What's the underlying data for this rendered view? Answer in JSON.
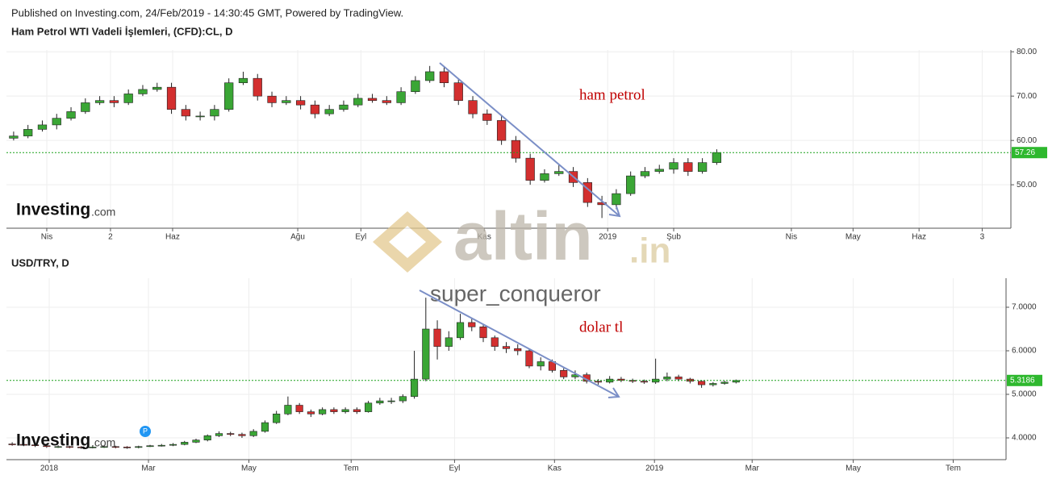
{
  "header": {
    "published": "Published on Investing.com, 24/Feb/2019 - 14:30:45 GMT, Powered by TradingView."
  },
  "logo": {
    "name": "Investing",
    "suffix": ".com"
  },
  "watermark": {
    "brand": "altin",
    "tld": ".in",
    "user": "super_conqueror"
  },
  "badge": "P",
  "chart_data": [
    {
      "type": "candlestick",
      "title": "Ham Petrol WTI Vadeli İşlemleri, (CFD):CL, D",
      "annotation": "ham petrol",
      "up_color": "#3aa635",
      "down_color": "#d32f2f",
      "grid": true,
      "open": [
        60.5,
        61,
        62.5,
        63.5,
        65,
        66.5,
        68.5,
        69,
        68.5,
        70.5,
        71.5,
        72,
        67,
        65.5,
        65.5,
        67,
        73,
        74,
        70,
        68.5,
        69,
        68,
        66,
        67,
        68,
        69.5,
        69,
        68.5,
        71,
        73.5,
        75.5,
        73,
        69,
        66,
        64.5,
        60,
        56,
        51,
        52.5,
        53,
        50.5,
        46,
        45.5,
        48,
        52,
        53,
        53.5,
        55,
        53,
        55
      ],
      "high": [
        62,
        63.5,
        64.5,
        66,
        67.5,
        69.5,
        70,
        70,
        71.5,
        72.5,
        73,
        73,
        68,
        66.5,
        68,
        74,
        75.5,
        75,
        71,
        70,
        70,
        69,
        68,
        69,
        70.5,
        70.5,
        70,
        72,
        74.5,
        76.8,
        76.5,
        74,
        70,
        67,
        65.5,
        61,
        57,
        53.5,
        54.5,
        54,
        51.5,
        47.5,
        49,
        53,
        54,
        54.5,
        56,
        56,
        56,
        58
      ],
      "low": [
        60,
        60.5,
        62,
        62.5,
        64.5,
        66,
        68,
        67.5,
        68,
        70,
        71,
        66,
        64.5,
        64.5,
        64.5,
        66.5,
        72.5,
        69,
        67.5,
        68,
        67,
        65,
        65.5,
        66.5,
        67.5,
        68.5,
        68,
        68,
        70.5,
        73,
        72,
        68,
        65,
        63.5,
        59,
        55,
        50,
        50.5,
        52,
        49.5,
        45,
        42.5,
        44.5,
        47.5,
        51.5,
        52.5,
        52.5,
        52,
        52.5,
        54.5
      ],
      "close": [
        61,
        62.5,
        63.5,
        65,
        66.5,
        68.5,
        69,
        68.5,
        70.5,
        71.5,
        72,
        67,
        65.5,
        65.5,
        67,
        73,
        74,
        70,
        68.5,
        69,
        68,
        66,
        67,
        68,
        69.5,
        69,
        68.5,
        71,
        73.5,
        75.5,
        73,
        69,
        66,
        64.5,
        60,
        56,
        51,
        52.5,
        53,
        50.5,
        46,
        45.5,
        48,
        52,
        53,
        53.5,
        55,
        53,
        55,
        57.26
      ],
      "last_price": 57.26,
      "xlim": [
        -0.5,
        69.5
      ],
      "xticks": [
        {
          "value": 2.31,
          "label": "Nis"
        },
        {
          "value": 6.75,
          "label": "2"
        },
        {
          "value": 11.08,
          "label": "Haz"
        },
        {
          "value": 19.8,
          "label": "Ağu"
        },
        {
          "value": 24.2,
          "label": "Eyl"
        },
        {
          "value": 32.8,
          "label": "Kas"
        },
        {
          "value": 41.4,
          "label": "2019"
        },
        {
          "value": 46.0,
          "label": "Şub"
        },
        {
          "value": 54.2,
          "label": "Nis"
        },
        {
          "value": 58.5,
          "label": "May"
        },
        {
          "value": 63.1,
          "label": "Haz"
        },
        {
          "value": 67.5,
          "label": "3"
        }
      ],
      "ylim": [
        40.2,
        80.4
      ],
      "yticks": [
        {
          "value": 50,
          "label": "50.00"
        },
        {
          "value": 60,
          "label": "60.00"
        },
        {
          "value": 70,
          "label": "70.00"
        },
        {
          "value": 80,
          "label": "80.00"
        }
      ]
    },
    {
      "type": "candlestick",
      "title": "USD/TRY, D",
      "annotation": "dolar tl",
      "up_color": "#3aa635",
      "down_color": "#d32f2f",
      "grid": true,
      "open": [
        3.86,
        3.85,
        3.84,
        3.82,
        3.8,
        3.8,
        3.79,
        3.78,
        3.79,
        3.8,
        3.79,
        3.78,
        3.8,
        3.82,
        3.83,
        3.85,
        3.9,
        3.95,
        4.05,
        4.1,
        4.08,
        4.05,
        4.15,
        4.35,
        4.55,
        4.75,
        4.6,
        4.55,
        4.65,
        4.6,
        4.65,
        4.6,
        4.8,
        4.85,
        4.85,
        4.95,
        5.35,
        6.5,
        6.1,
        6.3,
        6.65,
        6.55,
        6.3,
        6.1,
        6.05,
        6.0,
        5.65,
        5.75,
        5.55,
        5.4,
        5.45,
        5.3,
        5.28,
        5.35,
        5.32,
        5.3,
        5.28,
        5.35,
        5.4,
        5.35,
        5.3,
        5.22,
        5.25,
        5.28
      ],
      "high": [
        3.9,
        3.88,
        3.86,
        3.84,
        3.83,
        3.82,
        3.81,
        3.81,
        3.82,
        3.82,
        3.81,
        3.82,
        3.84,
        3.86,
        3.88,
        3.93,
        3.98,
        4.08,
        4.15,
        4.14,
        4.12,
        4.2,
        4.4,
        4.62,
        4.95,
        4.8,
        4.65,
        4.7,
        4.7,
        4.7,
        4.7,
        4.85,
        4.92,
        4.92,
        5.0,
        6.0,
        7.22,
        6.7,
        6.45,
        6.85,
        6.75,
        6.6,
        6.35,
        6.2,
        6.15,
        6.05,
        5.85,
        5.8,
        5.6,
        5.55,
        5.5,
        5.35,
        5.42,
        5.4,
        5.36,
        5.34,
        5.82,
        5.5,
        5.45,
        5.38,
        5.32,
        5.28,
        5.31,
        5.34
      ],
      "low": [
        3.82,
        3.81,
        3.79,
        3.77,
        3.77,
        3.76,
        3.75,
        3.76,
        3.77,
        3.76,
        3.75,
        3.76,
        3.79,
        3.8,
        3.81,
        3.83,
        3.88,
        3.92,
        4.02,
        4.04,
        4.0,
        4.02,
        4.12,
        4.32,
        4.52,
        4.55,
        4.48,
        4.52,
        4.55,
        4.56,
        4.55,
        4.58,
        4.76,
        4.78,
        4.8,
        4.9,
        5.3,
        5.8,
        6.0,
        6.25,
        6.45,
        6.2,
        6.0,
        5.95,
        5.9,
        5.6,
        5.55,
        5.5,
        5.35,
        5.35,
        5.25,
        5.22,
        5.25,
        5.28,
        5.26,
        5.24,
        5.24,
        5.3,
        5.3,
        5.25,
        5.15,
        5.18,
        5.22,
        5.25
      ],
      "close": [
        3.85,
        3.84,
        3.82,
        3.8,
        3.8,
        3.79,
        3.78,
        3.79,
        3.8,
        3.79,
        3.78,
        3.8,
        3.82,
        3.83,
        3.85,
        3.9,
        3.95,
        4.05,
        4.1,
        4.08,
        4.05,
        4.15,
        4.35,
        4.55,
        4.75,
        4.6,
        4.55,
        4.65,
        4.6,
        4.65,
        4.6,
        4.8,
        4.85,
        4.85,
        4.95,
        5.35,
        6.5,
        6.1,
        6.3,
        6.65,
        6.55,
        6.3,
        6.1,
        6.05,
        6.0,
        5.65,
        5.75,
        5.55,
        5.4,
        5.45,
        5.3,
        5.28,
        5.35,
        5.32,
        5.3,
        5.28,
        5.35,
        5.4,
        5.35,
        5.3,
        5.22,
        5.25,
        5.28,
        5.3186
      ],
      "last_price": 5.3186,
      "xlim": [
        -0.5,
        86.5
      ],
      "xticks": [
        {
          "value": 3.22,
          "label": "2018"
        },
        {
          "value": 11.86,
          "label": "Mar"
        },
        {
          "value": 20.6,
          "label": "May"
        },
        {
          "value": 29.5,
          "label": "Tem"
        },
        {
          "value": 38.5,
          "label": "Eyl"
        },
        {
          "value": 47.2,
          "label": "Kas"
        },
        {
          "value": 55.9,
          "label": "2019"
        },
        {
          "value": 64.4,
          "label": "Mar"
        },
        {
          "value": 73.2,
          "label": "May"
        },
        {
          "value": 81.9,
          "label": "Tem"
        }
      ],
      "ylim": [
        3.5,
        7.667
      ],
      "yticks": [
        {
          "value": 4,
          "label": "4.0000"
        },
        {
          "value": 5,
          "label": "5.0000"
        },
        {
          "value": 6,
          "label": "6.0000"
        },
        {
          "value": 7,
          "label": "7.0000"
        }
      ]
    }
  ]
}
